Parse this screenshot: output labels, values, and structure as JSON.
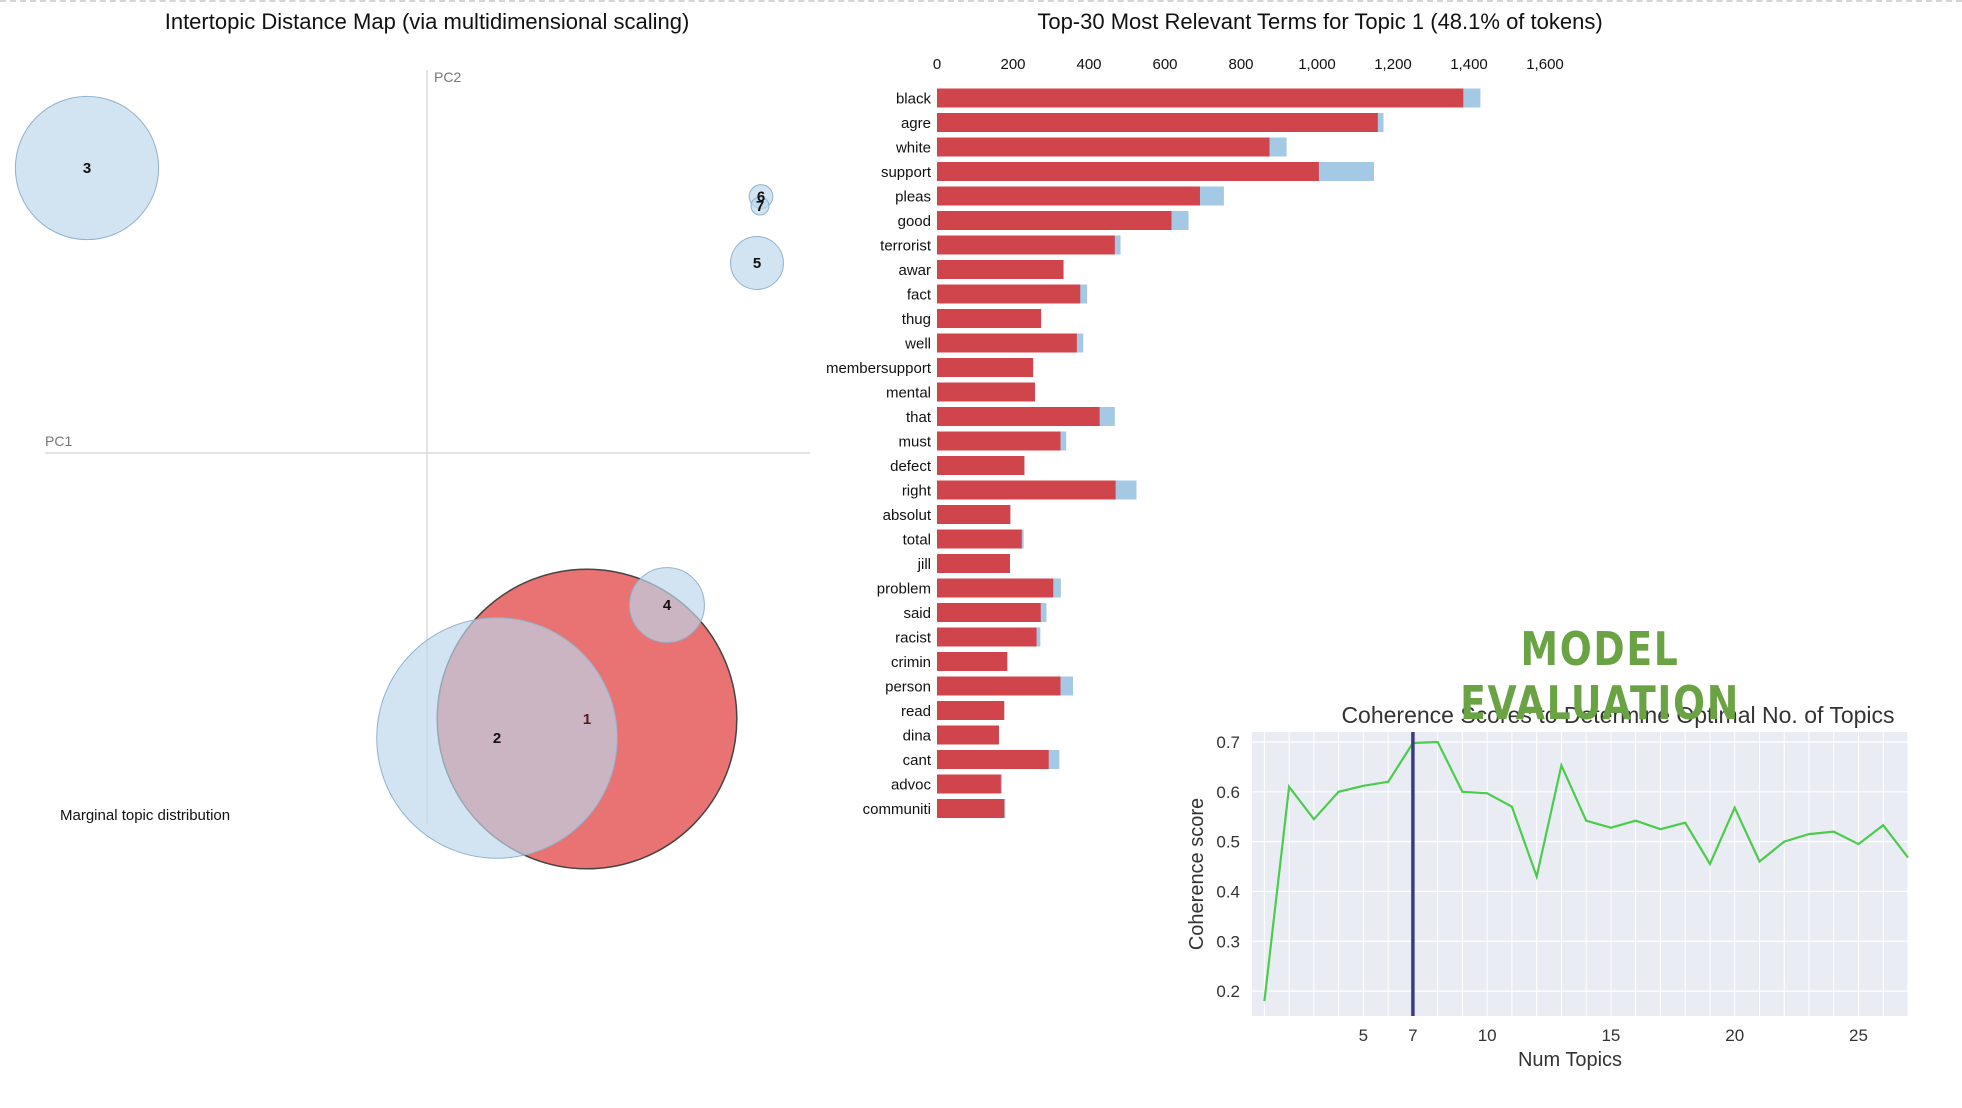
{
  "chart_data": [
    {
      "type": "scatter",
      "title": "Intertopic Distance Map (via multidimensional scaling)",
      "xlabel": "PC1",
      "ylabel": "PC2",
      "footer_label": "Marginal topic distribution",
      "topics": [
        {
          "id": "1",
          "pc1": 0.16,
          "pc2": -0.28,
          "size": 48.1,
          "selected": true
        },
        {
          "id": "2",
          "pc1": 0.07,
          "pc2": -0.3,
          "size": 31.0,
          "selected": false
        },
        {
          "id": "3",
          "pc1": -0.34,
          "pc2": 0.3,
          "size": 11.0,
          "selected": false
        },
        {
          "id": "4",
          "pc1": 0.24,
          "pc2": -0.16,
          "size": 3.0,
          "selected": false
        },
        {
          "id": "5",
          "pc1": 0.33,
          "pc2": 0.2,
          "size": 1.5,
          "selected": false
        },
        {
          "id": "6",
          "pc1": 0.334,
          "pc2": 0.27,
          "size": 0.3,
          "selected": false
        },
        {
          "id": "7",
          "pc1": 0.333,
          "pc2": 0.26,
          "size": 0.1,
          "selected": false
        }
      ],
      "colors": {
        "selected": "#e34a4a",
        "other": "#bcd6ea"
      }
    },
    {
      "type": "bar",
      "title": "Top-30 Most Relevant Terms for Topic 1 (48.1% of tokens)",
      "xlim": [
        0,
        1700
      ],
      "xticks": [
        "0",
        "200",
        "400",
        "600",
        "800",
        "1,000",
        "1,200",
        "1,400",
        "1,600"
      ],
      "xtick_values": [
        0,
        200,
        400,
        600,
        800,
        1000,
        1200,
        1400,
        1600
      ],
      "categories": [
        "black",
        "agre",
        "white",
        "support",
        "pleas",
        "good",
        "terrorist",
        "awar",
        "fact",
        "thug",
        "well",
        "membersupport",
        "mental",
        "that",
        "must",
        "defect",
        "right",
        "absolut",
        "total",
        "jill",
        "problem",
        "said",
        "racist",
        "crimin",
        "person",
        "read",
        "dina",
        "cant",
        "advoc",
        "communiti"
      ],
      "series": [
        {
          "values": [
            1385,
            1160,
            875,
            1005,
            692,
            617,
            468,
            333,
            377,
            274,
            368,
            253,
            258,
            428,
            325,
            230,
            470,
            193,
            223,
            192,
            306,
            273,
            262,
            185,
            325,
            177,
            163,
            294,
            168,
            177
          ]
        },
        {
          "values": [
            1430,
            1175,
            920,
            1150,
            755,
            662,
            483,
            333,
            395,
            274,
            385,
            253,
            258,
            468,
            340,
            230,
            525,
            193,
            228,
            192,
            326,
            288,
            272,
            185,
            358,
            177,
            163,
            322,
            171,
            180
          ]
        }
      ],
      "colors": {
        "topic": "#d0444b",
        "overall": "#a3c9e5"
      }
    },
    {
      "type": "line",
      "banner": "MODEL EVALUATION",
      "title": "Coherence Scores to Determine Optimal No. of Topics",
      "xlabel": "Num Topics",
      "ylabel": "Coherence score",
      "xlim": [
        0.5,
        27
      ],
      "ylim": [
        0.15,
        0.72
      ],
      "xticks": [
        5,
        7,
        10,
        15,
        20,
        25
      ],
      "yticks": [
        "0.2",
        "0.3",
        "0.4",
        "0.5",
        "0.6",
        "0.7"
      ],
      "ytick_values": [
        0.2,
        0.3,
        0.4,
        0.5,
        0.6,
        0.7
      ],
      "x": [
        1,
        2,
        3,
        4,
        5,
        6,
        7,
        8,
        9,
        10,
        11,
        12,
        13,
        14,
        15,
        16,
        17,
        18,
        19,
        20,
        21,
        22,
        23,
        24,
        25,
        26,
        27
      ],
      "y": [
        0.18,
        0.61,
        0.545,
        0.6,
        0.612,
        0.62,
        0.698,
        0.7,
        0.6,
        0.597,
        0.57,
        0.43,
        0.653,
        0.542,
        0.528,
        0.542,
        0.525,
        0.538,
        0.455,
        0.568,
        0.46,
        0.5,
        0.515,
        0.52,
        0.495,
        0.533,
        0.468
      ],
      "optimal_x": 7,
      "colors": {
        "line": "#4ccc4c",
        "vline": "#3d3a8c",
        "plot_bg": "#eaecf3",
        "grid": "#ffffff"
      }
    }
  ]
}
